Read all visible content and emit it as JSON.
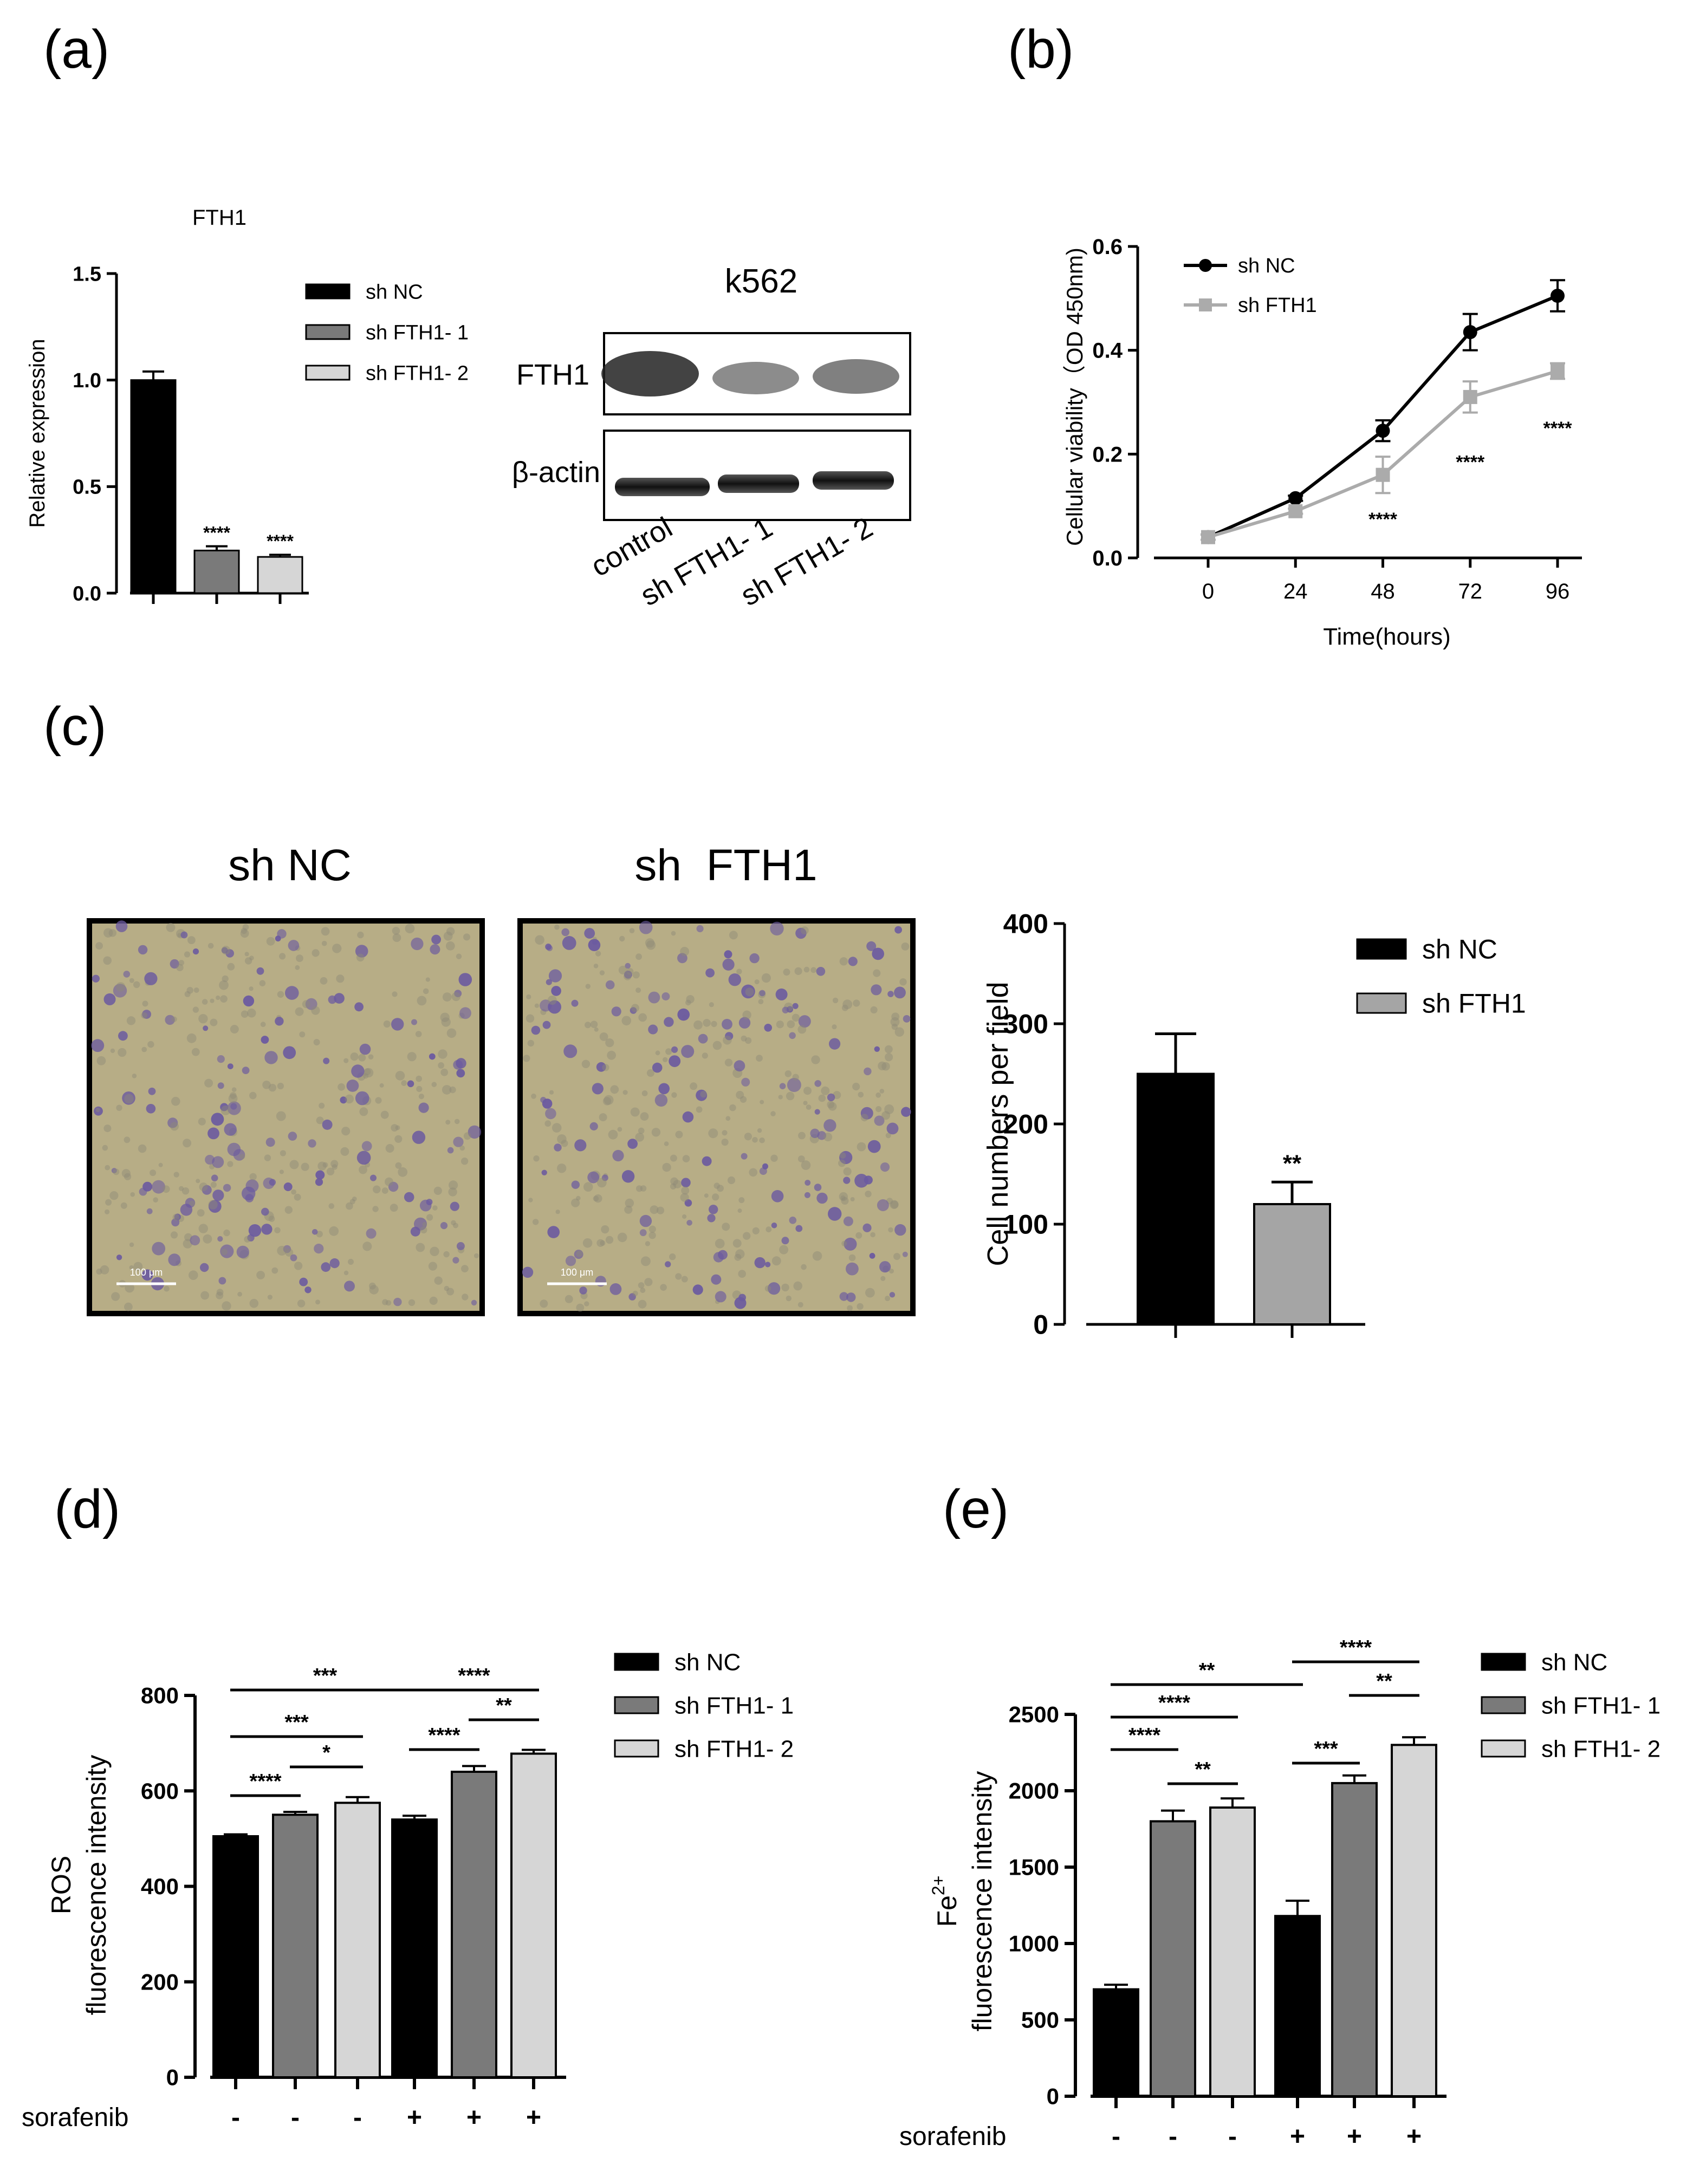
{
  "panels": {
    "a": "(a)",
    "b": "(b)",
    "c": "(c)",
    "d": "(d)",
    "e": "(e)"
  },
  "colors": {
    "black": "#000000",
    "dark_gray": "#7a7a7a",
    "light_gray": "#d6d6d6",
    "mid_gray": "#a5a5a5",
    "line_gray": "#ababab",
    "photo_bg": "#b7ad86",
    "cell": "#6b5aa0"
  },
  "blot": {
    "title": "k562",
    "rows": [
      "FTH1",
      "β-actin"
    ],
    "lanes": [
      "control",
      "sh FTH1- 1",
      "sh FTH1- 2"
    ]
  },
  "micrographs": {
    "left_title": "sh NC",
    "right_title": "sh  FTH1",
    "scale_label": "100 μm"
  },
  "chart_data": [
    {
      "id": "a",
      "type": "bar",
      "title": "FTH1",
      "ylabel": "Relative expression",
      "xlabel": "",
      "ylim": [
        0,
        1.5
      ],
      "yticks": [
        0.0,
        0.5,
        1.0,
        1.5
      ],
      "ytick_labels": [
        "0.0",
        "0.5",
        "1.0",
        "1.5"
      ],
      "categories": [
        "sh NC",
        "sh FTH1- 1",
        "sh FTH1- 2"
      ],
      "values": [
        1.0,
        0.2,
        0.17
      ],
      "errors": [
        0.04,
        0.02,
        0.01
      ],
      "annotations": [
        "",
        "****",
        "****"
      ],
      "legend": [
        "sh NC",
        "sh FTH1- 1",
        "sh FTH1- 2"
      ]
    },
    {
      "id": "b",
      "type": "line",
      "xlabel": "Time(hours)",
      "ylabel": "Cellular viability（OD 450nm)",
      "x": [
        0,
        24,
        48,
        72,
        96
      ],
      "ylim": [
        0.0,
        0.6
      ],
      "yticks": [
        0.0,
        0.2,
        0.4,
        0.6
      ],
      "ytick_labels": [
        "0.0",
        "0.2",
        "0.4",
        "0.6"
      ],
      "series": [
        {
          "name": "sh NC",
          "values": [
            0.04,
            0.115,
            0.245,
            0.435,
            0.505
          ],
          "errors": [
            0.005,
            0.005,
            0.02,
            0.035,
            0.03
          ]
        },
        {
          "name": "sh FTH1",
          "values": [
            0.04,
            0.09,
            0.16,
            0.31,
            0.36
          ],
          "errors": [
            0.005,
            0.005,
            0.035,
            0.03,
            0.015
          ]
        }
      ],
      "annotations": [
        {
          "x": 48,
          "label": "****"
        },
        {
          "x": 72,
          "label": "****"
        },
        {
          "x": 96,
          "label": "****"
        }
      ]
    },
    {
      "id": "c",
      "type": "bar",
      "ylabel": "Cell numbers per field",
      "xlabel": "",
      "ylim": [
        0,
        400
      ],
      "yticks": [
        0,
        100,
        200,
        300,
        400
      ],
      "ytick_labels": [
        "0",
        "100",
        "200",
        "300",
        "400"
      ],
      "categories": [
        "sh NC",
        "sh FTH1"
      ],
      "values": [
        250,
        120
      ],
      "errors": [
        40,
        22
      ],
      "annotations": [
        "",
        "**"
      ],
      "legend": [
        "sh NC",
        "sh FTH1"
      ]
    },
    {
      "id": "d",
      "type": "bar",
      "ylabel_line1": "ROS",
      "ylabel_line2": "fluorescence intensity",
      "ylim": [
        0,
        800
      ],
      "yticks": [
        0,
        200,
        400,
        600,
        800
      ],
      "ytick_labels": [
        "0",
        "200",
        "400",
        "600",
        "800"
      ],
      "categories": [
        "sh NC",
        "sh FTH1- 1",
        "sh FTH1- 2",
        "sh NC",
        "sh FTH1- 1",
        "sh FTH1- 2"
      ],
      "values": [
        505,
        550,
        575,
        540,
        640,
        678
      ],
      "errors": [
        4,
        6,
        12,
        8,
        12,
        8
      ],
      "sorafenib_label": "sorafenib",
      "sorafenib": [
        "-",
        "-",
        "-",
        "+",
        "+",
        "+"
      ],
      "legend": [
        "sh NC",
        "sh FTH1- 1",
        "sh FTH1- 2"
      ],
      "brackets": [
        {
          "from": 0,
          "to": 3,
          "label": "***"
        },
        {
          "from": 0,
          "to": 2,
          "label": "***"
        },
        {
          "from": 1,
          "to": 2,
          "label": "*"
        },
        {
          "from": 0,
          "to": 1,
          "label": "****"
        },
        {
          "from": 3,
          "to": 5,
          "label": "****"
        },
        {
          "from": 4,
          "to": 5,
          "label": "**"
        },
        {
          "from": 3,
          "to": 4,
          "label": "****"
        }
      ]
    },
    {
      "id": "e",
      "type": "bar",
      "ylabel_line1": "Fe",
      "ylabel_sup": "2+",
      "ylabel_line2": "fluorescence intensity",
      "ylim": [
        0,
        2500
      ],
      "yticks": [
        0,
        500,
        1000,
        1500,
        2000,
        2500
      ],
      "ytick_labels": [
        "0",
        "500",
        "1000",
        "1500",
        "2000",
        "2500"
      ],
      "categories": [
        "sh NC",
        "sh FTH1- 1",
        "sh FTH1- 2",
        "sh NC",
        "sh FTH1- 1",
        "sh FTH1- 2"
      ],
      "values": [
        700,
        1800,
        1890,
        1180,
        2050,
        2300
      ],
      "errors": [
        30,
        70,
        60,
        100,
        50,
        50
      ],
      "sorafenib_label": "sorafenib",
      "sorafenib": [
        "-",
        "-",
        "-",
        "+",
        "+",
        "+"
      ],
      "legend": [
        "sh NC",
        "sh FTH1- 1",
        "sh FTH1- 2"
      ],
      "brackets": [
        {
          "from": 0,
          "to": 3,
          "label": "**"
        },
        {
          "from": 0,
          "to": 2,
          "label": "****"
        },
        {
          "from": 0,
          "to": 1,
          "label": "****"
        },
        {
          "from": 1,
          "to": 2,
          "label": "**"
        },
        {
          "from": 3,
          "to": 5,
          "label": "****"
        },
        {
          "from": 4,
          "to": 5,
          "label": "**"
        },
        {
          "from": 3,
          "to": 4,
          "label": "***"
        }
      ]
    }
  ]
}
